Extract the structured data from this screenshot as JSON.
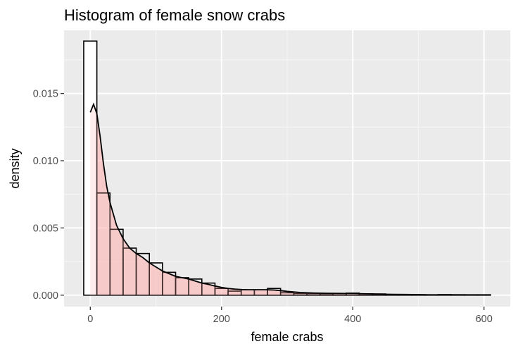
{
  "chart_data": {
    "type": "bar",
    "title": "Histogram of female snow crabs",
    "xlabel": "female crabs",
    "ylabel": "density",
    "xlim": [
      -40,
      640
    ],
    "ylim": [
      -0.00085,
      0.0197
    ],
    "x_ticks": [
      0,
      200,
      400,
      600
    ],
    "x_tick_labels": [
      "0",
      "200",
      "400",
      "600"
    ],
    "y_ticks": [
      0,
      0.005,
      0.01,
      0.015
    ],
    "y_tick_labels": [
      "0.000",
      "0.005",
      "0.010",
      "0.015"
    ],
    "grid": true,
    "bin_width": 20,
    "bins": {
      "centers": [
        0,
        20,
        40,
        60,
        80,
        100,
        120,
        140,
        160,
        180,
        200,
        220,
        240,
        260,
        280,
        300,
        320,
        340,
        360,
        380,
        400,
        420,
        440,
        460,
        480,
        500,
        520,
        540,
        560,
        580,
        600
      ],
      "density": [
        0.0189,
        0.0076,
        0.0049,
        0.0035,
        0.0031,
        0.0024,
        0.0017,
        0.0013,
        0.0012,
        0.0009,
        0.0005,
        0.0003,
        0.0004,
        0.0004,
        0.0005,
        0.00018,
        0.00012,
        0.00011,
        0.0001,
        0.00011,
        0.00015,
        0.0001,
        9e-05,
        5e-05,
        4e-05,
        3e-05,
        2e-05,
        4e-05,
        3e-05,
        3e-05,
        3e-05
      ]
    },
    "density_curve": {
      "x": [
        0,
        5,
        10,
        15,
        20,
        25,
        30,
        40,
        50,
        60,
        70,
        80,
        90,
        100,
        110,
        120,
        130,
        140,
        150,
        160,
        170,
        180,
        190,
        200,
        210,
        220,
        230,
        240,
        250,
        260,
        270,
        280,
        290,
        300,
        320,
        340,
        360,
        380,
        400,
        420,
        440,
        460,
        480,
        500,
        520,
        540,
        560,
        580,
        600
      ],
      "y": [
        0.0136,
        0.0142,
        0.0135,
        0.0118,
        0.0098,
        0.0081,
        0.0069,
        0.0052,
        0.0042,
        0.0035,
        0.0031,
        0.0028,
        0.0024,
        0.0021,
        0.0018,
        0.0016,
        0.0014,
        0.0013,
        0.0012,
        0.00105,
        0.0009,
        0.0008,
        0.00068,
        0.00058,
        0.0005,
        0.00045,
        0.00042,
        0.0004,
        0.0004,
        0.0004,
        0.0004,
        0.00038,
        0.00034,
        0.00028,
        0.0002,
        0.00016,
        0.00014,
        0.00013,
        0.00012,
        0.0001,
        8e-05,
        6e-05,
        5e-05,
        4e-05,
        3e-05,
        3e-05,
        3e-05,
        2e-05,
        2e-05
      ]
    },
    "colors": {
      "panel_background": "#ebebeb",
      "grid_major": "#ffffff",
      "grid_minor": "#f5f5f5",
      "bar_fill": "#ffffff",
      "bar_outline": "#000000",
      "density_fill": "#ffb3b3",
      "density_line": "#000000",
      "tick_label": "#4d4d4d",
      "tick_mark": "#333333"
    }
  }
}
